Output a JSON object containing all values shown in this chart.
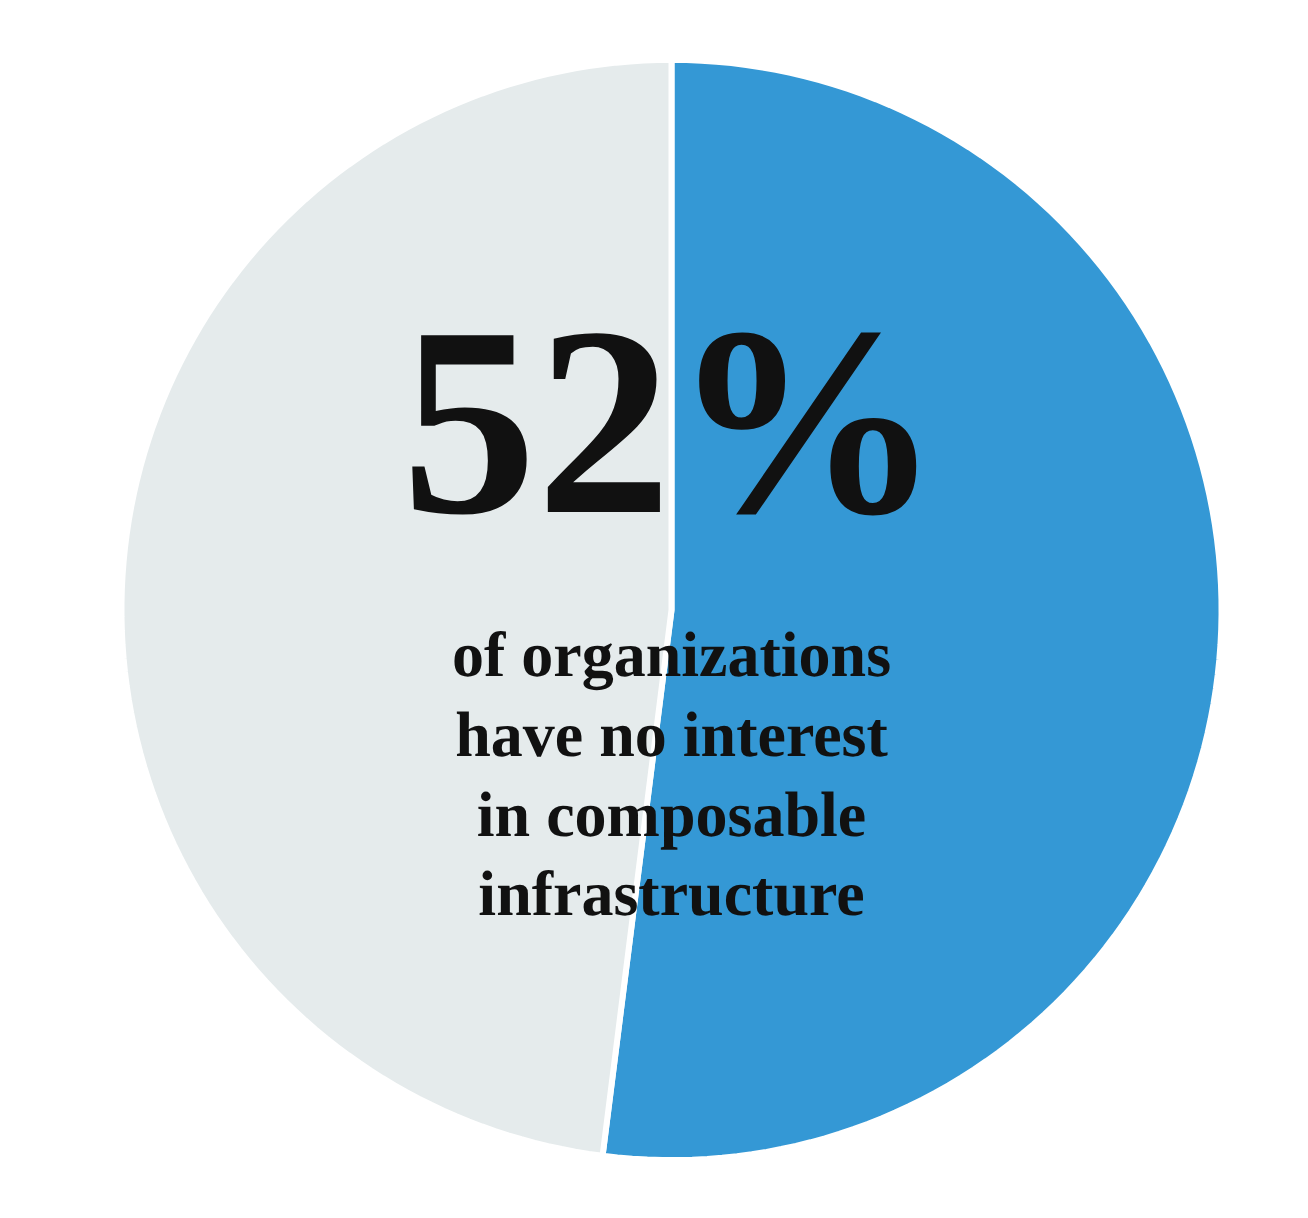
{
  "chart_data": {
    "type": "pie",
    "categories": [
      null,
      null
    ],
    "values": [
      52,
      48
    ],
    "colors": [
      "#3498d5",
      "#e5ebec"
    ],
    "annotations": [
      "52%",
      "of organizations have no interest in composable infrastructure"
    ]
  }
}
